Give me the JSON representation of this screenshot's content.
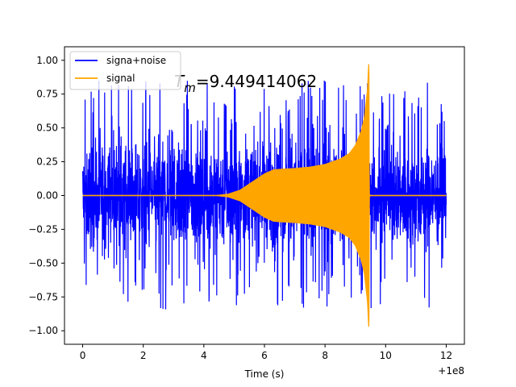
{
  "chart_data": {
    "type": "line",
    "title": "",
    "xlabel": "Time (s)",
    "ylabel": "",
    "x_offset_label": "+1e8",
    "xlim": [
      -0.6,
      12.6
    ],
    "ylim": [
      -1.1,
      1.1
    ],
    "xticks": [
      0,
      2,
      4,
      6,
      8,
      10,
      12
    ],
    "xtick_labels": [
      "0",
      "2",
      "4",
      "6",
      "8",
      "10",
      "12"
    ],
    "yticks": [
      -1.0,
      -0.75,
      -0.5,
      -0.25,
      0.0,
      0.25,
      0.5,
      0.75,
      1.0
    ],
    "ytick_labels": [
      "−1.00",
      "−0.75",
      "−0.50",
      "−0.25",
      "0.00",
      "0.25",
      "0.50",
      "0.75",
      "1.00"
    ],
    "grid": false,
    "legend_position": "upper-left",
    "annotation": {
      "main": "T",
      "subscript": "m",
      "rest": "=9.449414062"
    },
    "series": [
      {
        "name": "signa+noise",
        "color": "#0000ff",
        "x_range": [
          0,
          12
        ],
        "typical_amplitude": 0.3,
        "peak_range": [
          -0.95,
          0.95
        ]
      },
      {
        "name": "signal",
        "color": "#ffa500",
        "x_range": [
          0,
          12
        ],
        "envelope": {
          "x": [
            0,
            4.4,
            4.8,
            5.2,
            5.6,
            6.0,
            6.3,
            6.6,
            7.0,
            7.5,
            8.0,
            8.5,
            8.8,
            9.0,
            9.2,
            9.3,
            9.4,
            9.449,
            9.46,
            9.5,
            12.0
          ],
          "amplitude": [
            0.0,
            0.0,
            0.01,
            0.04,
            0.1,
            0.16,
            0.19,
            0.195,
            0.2,
            0.21,
            0.23,
            0.27,
            0.31,
            0.37,
            0.48,
            0.58,
            0.78,
            1.0,
            0.01,
            0.0,
            0.0
          ]
        }
      }
    ]
  }
}
